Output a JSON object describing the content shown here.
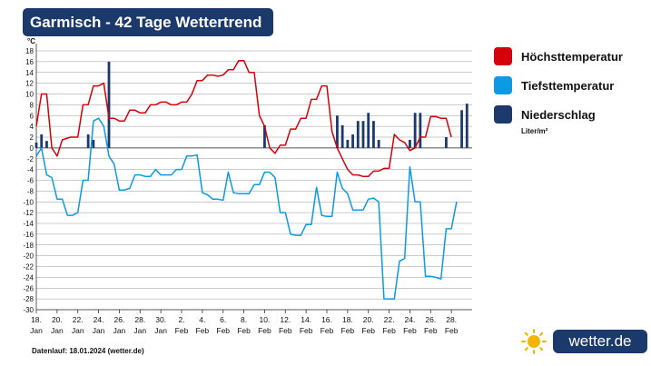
{
  "title": "Garmisch - 42 Tage Wettertrend",
  "footer": "Datenlauf: 18.01.2024 (wetter.de)",
  "logo_text": "wetter.de",
  "logo_icon": "sun-icon",
  "colors": {
    "max": "#d4000b",
    "min": "#0b9ae3",
    "precip": "#1b3a6b",
    "title_bg": "#1b3a6b"
  },
  "legend": [
    {
      "label": "Höchsttemperatur",
      "color": "#d4000b"
    },
    {
      "label": "Tiefsttemperatur",
      "color": "#0b9ae3"
    },
    {
      "label": "Niederschlag",
      "color": "#1b3a6b"
    }
  ],
  "precip_unit": "Liter/m²",
  "chart_data": {
    "type": "line",
    "ylabel": "°C",
    "ylim": [
      -30,
      18
    ],
    "yticks": [
      18,
      16,
      14,
      12,
      10,
      8,
      6,
      4,
      2,
      0,
      -2,
      -4,
      -6,
      -8,
      -10,
      -12,
      -14,
      -16,
      -18,
      -20,
      -22,
      -24,
      -26,
      -28,
      -30
    ],
    "grid": true,
    "xlim": [
      0,
      42
    ],
    "x_ticks": [
      {
        "day": "18.",
        "month": "Jan",
        "x": 0
      },
      {
        "day": "20.",
        "month": "Jan",
        "x": 2
      },
      {
        "day": "22.",
        "month": "Jan",
        "x": 4
      },
      {
        "day": "24.",
        "month": "Jan",
        "x": 6
      },
      {
        "day": "26.",
        "month": "Jan",
        "x": 8
      },
      {
        "day": "28.",
        "month": "Jan",
        "x": 10
      },
      {
        "day": "30.",
        "month": "Jan",
        "x": 12
      },
      {
        "day": "2.",
        "month": "Feb",
        "x": 14
      },
      {
        "day": "4.",
        "month": "Feb",
        "x": 16
      },
      {
        "day": "6.",
        "month": "Feb",
        "x": 18
      },
      {
        "day": "8.",
        "month": "Feb",
        "x": 20
      },
      {
        "day": "10.",
        "month": "Feb",
        "x": 22
      },
      {
        "day": "12.",
        "month": "Feb",
        "x": 24
      },
      {
        "day": "14.",
        "month": "Feb",
        "x": 26
      },
      {
        "day": "16.",
        "month": "Feb",
        "x": 28
      },
      {
        "day": "18.",
        "month": "Feb",
        "x": 30
      },
      {
        "day": "20.",
        "month": "Feb",
        "x": 32
      },
      {
        "day": "22.",
        "month": "Feb",
        "x": 34
      },
      {
        "day": "24.",
        "month": "Feb",
        "x": 36
      },
      {
        "day": "26.",
        "month": "Feb",
        "x": 38
      },
      {
        "day": "28.",
        "month": "Feb",
        "x": 40
      }
    ],
    "series": [
      {
        "name": "Höchsttemperatur",
        "color": "#d4000b",
        "points": [
          [
            0,
            4
          ],
          [
            0.5,
            10
          ],
          [
            1,
            10
          ],
          [
            1.5,
            0
          ],
          [
            2,
            -1.5
          ],
          [
            2.5,
            1.5
          ],
          [
            3.3,
            2
          ],
          [
            4,
            2
          ],
          [
            4.5,
            8
          ],
          [
            5,
            8
          ],
          [
            5.5,
            11.5
          ],
          [
            6,
            11.5
          ],
          [
            6.5,
            12
          ],
          [
            7,
            5.5
          ],
          [
            7.5,
            5.5
          ],
          [
            8,
            5
          ],
          [
            8.5,
            5
          ],
          [
            9,
            7
          ],
          [
            9.5,
            7
          ],
          [
            10,
            6.5
          ],
          [
            10.5,
            6.5
          ],
          [
            11,
            8
          ],
          [
            11.5,
            8
          ],
          [
            12,
            8.5
          ],
          [
            12.5,
            8.5
          ],
          [
            13,
            8
          ],
          [
            13.5,
            8
          ],
          [
            14,
            8.5
          ],
          [
            14.5,
            8.5
          ],
          [
            15,
            10
          ],
          [
            15.5,
            12.5
          ],
          [
            16,
            12.5
          ],
          [
            16.5,
            13.5
          ],
          [
            17,
            13.5
          ],
          [
            17.5,
            13.3
          ],
          [
            18,
            13.5
          ],
          [
            18.5,
            14.5
          ],
          [
            19,
            14.5
          ],
          [
            19.5,
            16.2
          ],
          [
            20,
            16.2
          ],
          [
            20.5,
            14
          ],
          [
            21,
            14
          ],
          [
            21.5,
            6
          ],
          [
            22,
            4
          ],
          [
            22.5,
            0
          ],
          [
            23,
            -1
          ],
          [
            23.5,
            0.5
          ],
          [
            24,
            0.5
          ],
          [
            24.5,
            3.5
          ],
          [
            25,
            3.5
          ],
          [
            25.5,
            5.5
          ],
          [
            26,
            5.5
          ],
          [
            26.5,
            9
          ],
          [
            27,
            9
          ],
          [
            27.5,
            11.5
          ],
          [
            28,
            11.5
          ],
          [
            28.5,
            3
          ],
          [
            29,
            0
          ],
          [
            29.5,
            -2
          ],
          [
            30,
            -4
          ],
          [
            30.5,
            -5
          ],
          [
            31,
            -5
          ],
          [
            31.5,
            -5.3
          ],
          [
            32,
            -5.3
          ],
          [
            32.5,
            -4.3
          ],
          [
            33,
            -4.3
          ],
          [
            33.5,
            -3.8
          ],
          [
            34,
            -3.8
          ],
          [
            34.5,
            2.5
          ],
          [
            35,
            1.5
          ],
          [
            35.5,
            1
          ],
          [
            36,
            -0.5
          ],
          [
            36.5,
            0
          ],
          [
            37,
            2
          ],
          [
            37.5,
            2
          ],
          [
            38,
            5.8
          ],
          [
            38.5,
            5.8
          ],
          [
            39,
            5.5
          ],
          [
            39.5,
            5.5
          ],
          [
            40,
            2
          ]
        ]
      },
      {
        "name": "Tiefsttemperatur",
        "color": "#0b9ae3",
        "points": [
          [
            0,
            -1.5
          ],
          [
            0.5,
            0
          ],
          [
            1,
            -5
          ],
          [
            1.5,
            -5.5
          ],
          [
            2,
            -9.5
          ],
          [
            2.5,
            -9.5
          ],
          [
            3,
            -12.5
          ],
          [
            3.5,
            -12.5
          ],
          [
            4,
            -12
          ],
          [
            4.5,
            -6
          ],
          [
            5,
            -6
          ],
          [
            5.5,
            5
          ],
          [
            6,
            5.5
          ],
          [
            6.5,
            4
          ],
          [
            7,
            -1.5
          ],
          [
            7.5,
            -3
          ],
          [
            8,
            -7.8
          ],
          [
            8.5,
            -7.8
          ],
          [
            9,
            -7.5
          ],
          [
            9.5,
            -5
          ],
          [
            10,
            -5
          ],
          [
            10.5,
            -5.3
          ],
          [
            11,
            -5.3
          ],
          [
            11.5,
            -4
          ],
          [
            12,
            -5
          ],
          [
            12.5,
            -5
          ],
          [
            13,
            -5
          ],
          [
            13.5,
            -4
          ],
          [
            14,
            -4
          ],
          [
            14.5,
            -1.5
          ],
          [
            15,
            -1.5
          ],
          [
            15.5,
            -1.3
          ],
          [
            16,
            -8.3
          ],
          [
            16.5,
            -8.7
          ],
          [
            17,
            -9.5
          ],
          [
            17.5,
            -9.5
          ],
          [
            18,
            -9.7
          ],
          [
            18.5,
            -4.5
          ],
          [
            19,
            -8.3
          ],
          [
            19.5,
            -8.5
          ],
          [
            20,
            -8.5
          ],
          [
            20.5,
            -8.5
          ],
          [
            21,
            -6.8
          ],
          [
            21.5,
            -6.8
          ],
          [
            22,
            -4.5
          ],
          [
            22.5,
            -4.5
          ],
          [
            23,
            -5.5
          ],
          [
            23.5,
            -12
          ],
          [
            24,
            -12
          ],
          [
            24.5,
            -16
          ],
          [
            25,
            -16.2
          ],
          [
            25.5,
            -16.2
          ],
          [
            26,
            -14.2
          ],
          [
            26.5,
            -14.2
          ],
          [
            27,
            -7.3
          ],
          [
            27.5,
            -12.5
          ],
          [
            28,
            -12.7
          ],
          [
            28.5,
            -12.7
          ],
          [
            29,
            -4.5
          ],
          [
            29.5,
            -7.5
          ],
          [
            30,
            -8.5
          ],
          [
            30.5,
            -11.5
          ],
          [
            31,
            -11.5
          ],
          [
            31.5,
            -11.5
          ],
          [
            32,
            -9.5
          ],
          [
            32.5,
            -9.3
          ],
          [
            33,
            -10
          ],
          [
            33.5,
            -28
          ],
          [
            34,
            -28
          ],
          [
            34.5,
            -28
          ],
          [
            35,
            -21
          ],
          [
            35.5,
            -20.5
          ],
          [
            36,
            -3.5
          ],
          [
            36.5,
            -10
          ],
          [
            37,
            -10
          ],
          [
            37.5,
            -23.8
          ],
          [
            38,
            -23.8
          ],
          [
            38.5,
            -24
          ],
          [
            39,
            -24.3
          ],
          [
            39.5,
            -15
          ],
          [
            40,
            -15
          ],
          [
            40.5,
            -10
          ]
        ]
      }
    ],
    "precip_bars": [
      [
        0,
        1
      ],
      [
        0.5,
        2.5
      ],
      [
        1,
        1.3
      ],
      [
        5,
        2.5
      ],
      [
        5.5,
        1.5
      ],
      [
        7,
        16
      ],
      [
        22,
        4.2
      ],
      [
        29,
        6
      ],
      [
        29.5,
        4.2
      ],
      [
        30,
        1.5
      ],
      [
        30.5,
        2.5
      ],
      [
        31,
        5
      ],
      [
        31.5,
        5
      ],
      [
        32,
        6.5
      ],
      [
        32.5,
        5
      ],
      [
        33,
        1.5
      ],
      [
        36,
        1.5
      ],
      [
        36.5,
        6.5
      ],
      [
        37,
        6.5
      ],
      [
        39.5,
        2
      ],
      [
        41,
        7
      ],
      [
        41.5,
        8.2
      ]
    ]
  }
}
